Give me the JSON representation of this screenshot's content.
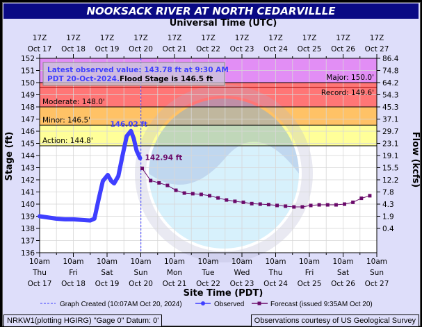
{
  "title": "NOOKSACK RIVER AT NORTH CEDARVILLLE",
  "top_axis_title": "Universal Time (UTC)",
  "bottom_axis_title": "Site Time (PDT)",
  "info": {
    "latest": "Latest observed value: 143.78 ft at 9:30 AM",
    "latest2": "PDT 20-Oct-2024.",
    "flood_stage": "Flood Stage is 146.5 ft"
  },
  "footer": {
    "left": "NRKW1(plotting HGIRG) \"Gage 0\" Datum: 0'",
    "right": "Observations courtesy of US Geological Survey"
  },
  "colors": {
    "observed": "#3f3fff",
    "forecast": "#6a0a6a",
    "major": "#e28ef5",
    "moderate": "#ff7676",
    "minor": "#ffc266",
    "action": "#ffff99"
  },
  "chart_data": {
    "type": "line",
    "title": "NOOKSACK RIVER AT NORTH CEDARVILLLE",
    "xlabel": "Site Time (PDT)",
    "ylabel": "Stage (ft)",
    "y2label": "Flow (kcfs)",
    "ylim": [
      136,
      152
    ],
    "x_unit": "hours since 10am Thu Oct 17 (PDT)",
    "xlim": [
      0,
      240
    ],
    "y_ticks": [
      136,
      137,
      138,
      139,
      140,
      141,
      142,
      143,
      144,
      145,
      146,
      147,
      148,
      149,
      150,
      151,
      152
    ],
    "y2_ticks": [
      {
        "stage": 152,
        "label": "86.4"
      },
      {
        "stage": 151,
        "label": "74.8"
      },
      {
        "stage": 150,
        "label": "64.2"
      },
      {
        "stage": 149,
        "label": "54.3"
      },
      {
        "stage": 148,
        "label": "45.3"
      },
      {
        "stage": 147,
        "label": "37.1"
      },
      {
        "stage": 146,
        "label": "29.7"
      },
      {
        "stage": 145,
        "label": "23.1"
      },
      {
        "stage": 144,
        "label": "19.1"
      },
      {
        "stage": 143,
        "label": "15.5"
      },
      {
        "stage": 142,
        "label": "12.2"
      },
      {
        "stage": 141,
        "label": "7.8"
      },
      {
        "stage": 140,
        "label": "4.3"
      },
      {
        "stage": 139,
        "label": "1.9"
      },
      {
        "stage": 138,
        "label": "0.4"
      }
    ],
    "x_ticks_bottom": [
      [
        "10am",
        "Thu",
        "Oct 17"
      ],
      [
        "10am",
        "Fri",
        "Oct 18"
      ],
      [
        "10am",
        "Sat",
        "Oct 19"
      ],
      [
        "10am",
        "Sun",
        "Oct 20"
      ],
      [
        "10am",
        "Mon",
        "Oct 21"
      ],
      [
        "10am",
        "Tue",
        "Oct 22"
      ],
      [
        "10am",
        "Wed",
        "Oct 23"
      ],
      [
        "10am",
        "Thu",
        "Oct 24"
      ],
      [
        "10am",
        "Fri",
        "Oct 25"
      ],
      [
        "10am",
        "Sat",
        "Oct 26"
      ],
      [
        "10am",
        "Sun",
        "Oct 27"
      ]
    ],
    "x_ticks_top": [
      [
        "17Z",
        "Oct 17"
      ],
      [
        "17Z",
        "Oct 18"
      ],
      [
        "17Z",
        "Oct 19"
      ],
      [
        "17Z",
        "Oct 20"
      ],
      [
        "17Z",
        "Oct 21"
      ],
      [
        "17Z",
        "Oct 22"
      ],
      [
        "17Z",
        "Oct 23"
      ],
      [
        "17Z",
        "Oct 24"
      ],
      [
        "17Z",
        "Oct 25"
      ],
      [
        "17Z",
        "Oct 26"
      ],
      [
        "17Z",
        "Oct 27"
      ]
    ],
    "thresholds": [
      {
        "name": "Record",
        "value": 149.6,
        "label": "Record: 149.6'"
      },
      {
        "name": "Major",
        "value": 150.0,
        "label": "Major: 150.0'"
      },
      {
        "name": "Moderate",
        "value": 148.0,
        "label": "Moderate: 148.0'"
      },
      {
        "name": "Minor",
        "value": 146.5,
        "label": "Minor: 146.5'"
      },
      {
        "name": "Action",
        "value": 144.8,
        "label": "Action: 144.8'"
      }
    ],
    "graph_created_hour": 72.1,
    "series": [
      {
        "name": "Observed",
        "x": [
          0,
          6,
          12,
          18,
          24,
          30,
          36,
          39,
          42,
          45,
          48.5,
          51,
          53,
          56,
          59,
          62,
          65,
          67,
          69,
          71.5
        ],
        "y": [
          139.0,
          138.9,
          138.8,
          138.75,
          138.75,
          138.7,
          138.65,
          138.8,
          140.4,
          141.9,
          142.4,
          141.9,
          141.7,
          142.3,
          144.0,
          145.6,
          146.02,
          145.4,
          144.4,
          143.78
        ]
      },
      {
        "name": "Forecast",
        "x": [
          73,
          79,
          85,
          91,
          97,
          103,
          109,
          115,
          121,
          127,
          133,
          139,
          145,
          151,
          157,
          163,
          169,
          175,
          181,
          187,
          193,
          199,
          205,
          211,
          217,
          223,
          229,
          235
        ],
        "y": [
          142.94,
          141.94,
          141.75,
          141.54,
          141.14,
          140.91,
          140.86,
          140.8,
          140.69,
          140.51,
          140.34,
          140.23,
          140.15,
          140.04,
          140.0,
          139.96,
          139.89,
          139.83,
          139.77,
          139.77,
          139.89,
          139.94,
          139.94,
          139.94,
          140.0,
          140.15,
          140.48,
          140.69
        ]
      }
    ],
    "annotations": {
      "peak": "146.02 ft",
      "forecast_start": "142.94 ft"
    },
    "legend": {
      "position": "bottom",
      "items": [
        "Graph Created (10:07AM Oct 20, 2024)",
        "Observed",
        "Forecast (issued 9:35AM Oct 20)"
      ]
    }
  }
}
